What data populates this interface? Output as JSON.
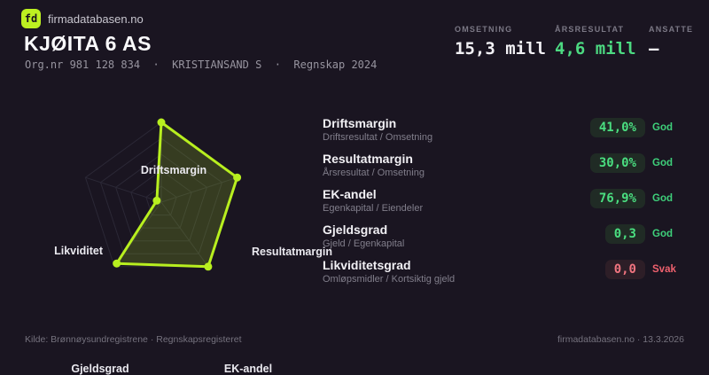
{
  "brand": {
    "logo_text": "fd",
    "site": "firmadatabasen.no"
  },
  "header": {
    "company_name": "KJØITA 6 AS",
    "org_line": "Org.nr 981 128 834  ·  KRISTIANSAND S  ·  Regnskap 2024",
    "stats": [
      {
        "label": "OMSETNING",
        "value": "15,3 mill"
      },
      {
        "label": "ÅRSRESULTAT",
        "value": "4,6 mill"
      },
      {
        "label": "ANSATTE",
        "value": "–"
      }
    ]
  },
  "chart_data": {
    "type": "radar",
    "axes": [
      "Driftsmargin",
      "Resultatmargin",
      "EK-andel",
      "Gjeldsgrad",
      "Likviditet"
    ],
    "values": [
      1.0,
      1.0,
      1.0,
      0.95,
      0.06
    ],
    "max": 1.0,
    "rings": 5,
    "grid_color": "#2b2836",
    "stroke_color": "#b8ef1f",
    "fill_color": "rgba(184,239,31,0.18)",
    "dot_radius": 4.5
  },
  "metrics": [
    {
      "name": "Driftsmargin",
      "formula": "Driftsresultat / Omsetning",
      "value": "41,0%",
      "rating": "God",
      "status": "good"
    },
    {
      "name": "Resultatmargin",
      "formula": "Årsresultat / Omsetning",
      "value": "30,0%",
      "rating": "God",
      "status": "good"
    },
    {
      "name": "EK-andel",
      "formula": "Egenkapital / Eiendeler",
      "value": "76,9%",
      "rating": "God",
      "status": "good"
    },
    {
      "name": "Gjeldsgrad",
      "formula": "Gjeld / Egenkapital",
      "value": "0,3",
      "rating": "God",
      "status": "good"
    },
    {
      "name": "Likviditetsgrad",
      "formula": "Omløpsmidler / Kortsiktig gjeld",
      "value": "0,0",
      "rating": "Svak",
      "status": "weak"
    }
  ],
  "footer": {
    "left": "Kilde: Brønnøysundregistrene · Regnskapsregisteret",
    "right": "firmadatabasen.no · 13.3.2026"
  },
  "colors": {
    "background": "#1a1521",
    "accent": "#bdf021",
    "positive": "#4ade80",
    "negative": "#ef616e",
    "muted_text": "#8e8b97"
  }
}
